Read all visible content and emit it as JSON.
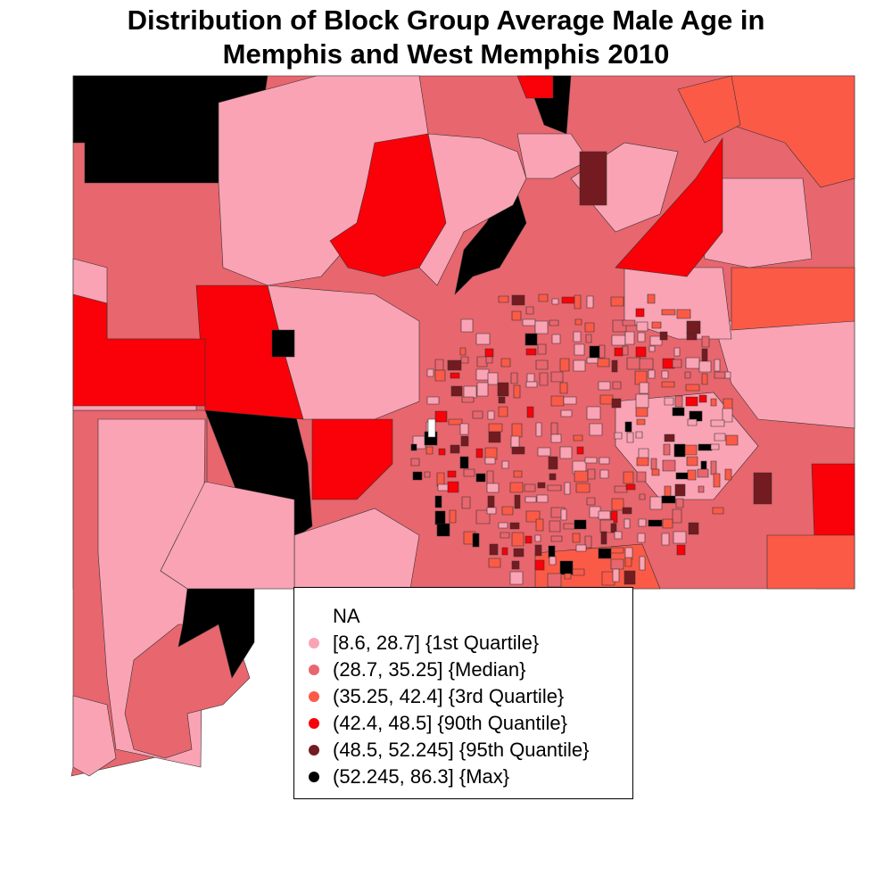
{
  "title": {
    "line1": "Distribution of Block Group Average Male Age in",
    "line2": "Memphis and West Memphis 2010"
  },
  "legend": {
    "items": [
      {
        "label": "NA",
        "color": "#ffffff",
        "marker": "none"
      },
      {
        "label": "[8.6, 28.7] {1st Quartile}",
        "color": "#f9a3b4"
      },
      {
        "label": "(28.7, 35.25] {Median}",
        "color": "#e8666e"
      },
      {
        "label": "(35.25, 42.4] {3rd Quartile}",
        "color": "#fb5a47"
      },
      {
        "label": "(42.4, 48.5] {90th Quantile}",
        "color": "#fa0008"
      },
      {
        "label": "(48.5, 52.245] {95th Quantile}",
        "color": "#731b20"
      },
      {
        "label": "(52.245, 86.3] {Max}",
        "color": "#000000"
      }
    ]
  },
  "palette": {
    "q1": "#f9a3b4",
    "median": "#e8666e",
    "q3": "#fb5a47",
    "q90": "#fa0008",
    "q95": "#731b20",
    "max": "#000000",
    "na": "#ffffff",
    "border": "#333333"
  }
}
